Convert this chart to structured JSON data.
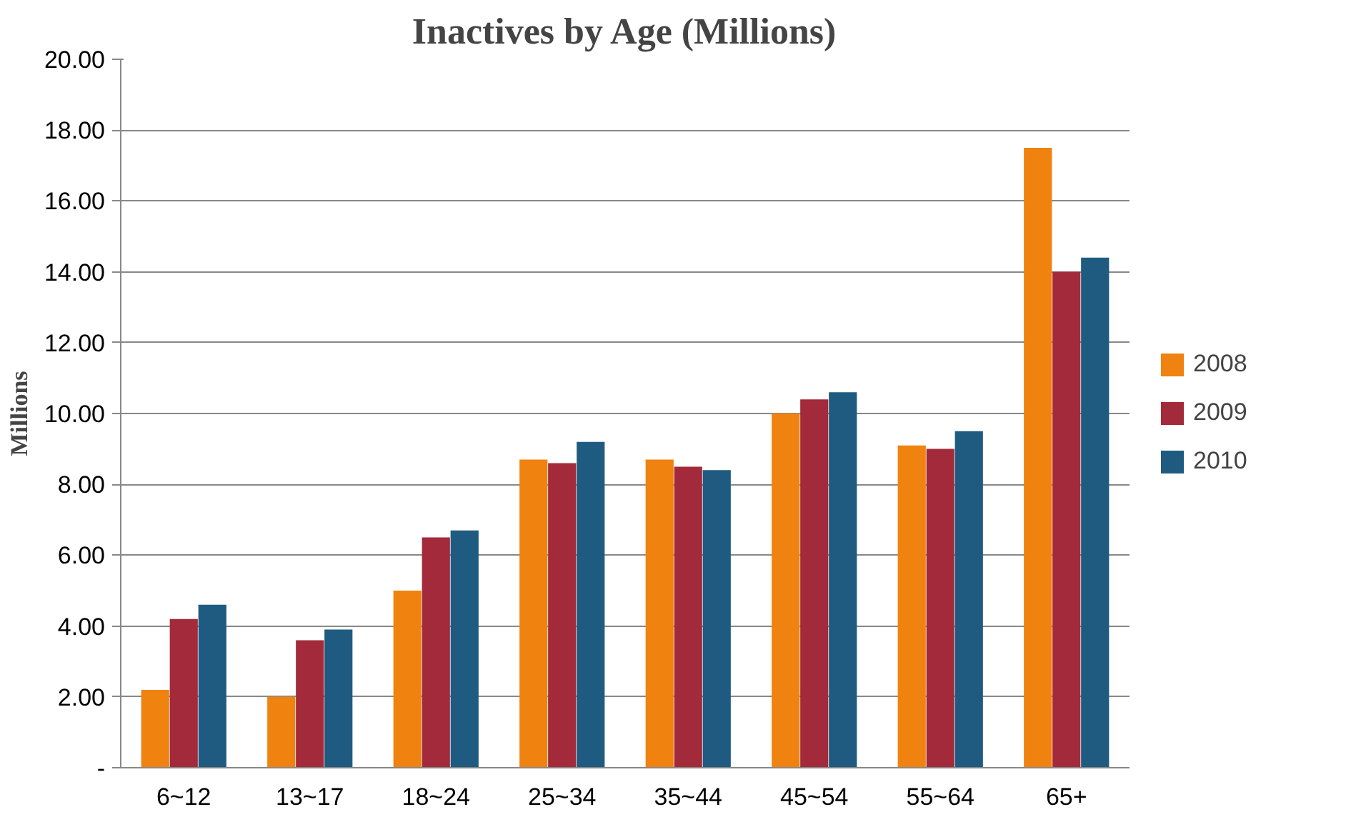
{
  "chart_data": {
    "type": "bar",
    "title": "Inactives by Age (Millions)",
    "ylabel": "Millions",
    "categories": [
      "6~12",
      "13~17",
      "18~24",
      "25~34",
      "35~44",
      "45~54",
      "55~64",
      "65+"
    ],
    "series": [
      {
        "name": "2008",
        "color": "#f0820f",
        "values": [
          2.2,
          2.0,
          5.0,
          8.7,
          8.7,
          10.0,
          9.1,
          17.5
        ]
      },
      {
        "name": "2009",
        "color": "#a32a3b",
        "values": [
          4.2,
          3.6,
          6.5,
          8.6,
          8.5,
          10.4,
          9.0,
          14.0
        ]
      },
      {
        "name": "2010",
        "color": "#1f5b80",
        "values": [
          4.6,
          3.9,
          6.7,
          9.2,
          8.4,
          10.6,
          9.5,
          14.4
        ]
      }
    ],
    "ylim": [
      0,
      20
    ],
    "yticks": [
      {
        "value": 0,
        "label": "-"
      },
      {
        "value": 2,
        "label": "2.00"
      },
      {
        "value": 4,
        "label": "4.00"
      },
      {
        "value": 6,
        "label": "6.00"
      },
      {
        "value": 8,
        "label": "8.00"
      },
      {
        "value": 10,
        "label": "10.00"
      },
      {
        "value": 12,
        "label": "12.00"
      },
      {
        "value": 14,
        "label": "14.00"
      },
      {
        "value": 16,
        "label": "16.00"
      },
      {
        "value": 18,
        "label": "18.00"
      },
      {
        "value": 20,
        "label": "20.00"
      }
    ],
    "grid": "y",
    "legend": "right"
  }
}
